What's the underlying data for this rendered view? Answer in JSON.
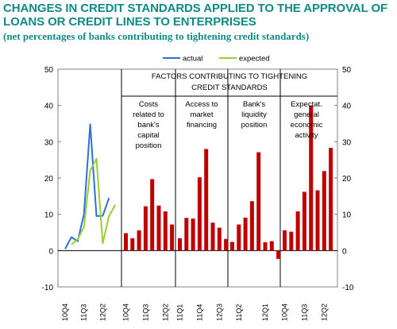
{
  "header": {
    "title": "CHANGES IN CREDIT STANDARDS APPLIED TO THE APPROVAL OF LOANS OR CREDIT LINES TO ENTERPRISES",
    "subtitle": "(net percentages of banks contributing to tightening credit standards)"
  },
  "chart_data": {
    "type": "bar",
    "title": "FACTORS CONTRIBUTING TO TIGHTENING CREDIT STANDARDS",
    "ylim": [
      -10,
      50
    ],
    "yticks": [
      -10,
      0,
      10,
      20,
      30,
      40,
      50
    ],
    "grid": false,
    "legend_position": "top-left",
    "colors": {
      "actual": "#2f6fd6",
      "expected": "#9acd32",
      "bars": "#c00000",
      "axis": "#000000"
    },
    "line_panel": {
      "x_tick_labels": [
        "10Q4",
        "11Q3",
        "12Q2"
      ],
      "series": [
        {
          "name": "actual",
          "values": [
            0.5,
            3.7,
            2.6,
            10.0,
            34.8,
            9.5,
            9.6,
            14.5,
            null
          ]
        },
        {
          "name": "expected",
          "values": [
            null,
            1.7,
            3.1,
            6.5,
            22.0,
            25.3,
            2.0,
            9.5,
            12.6
          ]
        }
      ]
    },
    "bar_panels": [
      {
        "label": "Costs related to bank's capital position",
        "x_tick_labels": [
          "10Q4",
          "11Q3",
          "12Q2"
        ],
        "values": [
          4.8,
          3.4,
          5.6,
          12.2,
          19.7,
          12.4,
          10.8,
          7.2
        ]
      },
      {
        "label": "Access to market financing",
        "x_tick_labels": [
          "11Q1",
          "11Q4",
          "12Q3"
        ],
        "values": [
          3.4,
          9.0,
          8.8,
          20.2,
          28.0,
          7.7,
          6.3,
          3.2
        ]
      },
      {
        "label": "Bank's liquidity position",
        "x_tick_labels": [
          "11Q2",
          "12Q1"
        ],
        "values": [
          2.4,
          7.2,
          9.1,
          13.6,
          27.1,
          2.3,
          2.6,
          -2.3
        ]
      },
      {
        "label": "Expectat. general economic activity",
        "x_tick_labels": [
          "10Q4",
          "11Q3",
          "12Q2"
        ],
        "values": [
          5.6,
          5.2,
          10.8,
          16.2,
          40.0,
          16.6,
          21.9,
          28.3
        ]
      }
    ]
  }
}
